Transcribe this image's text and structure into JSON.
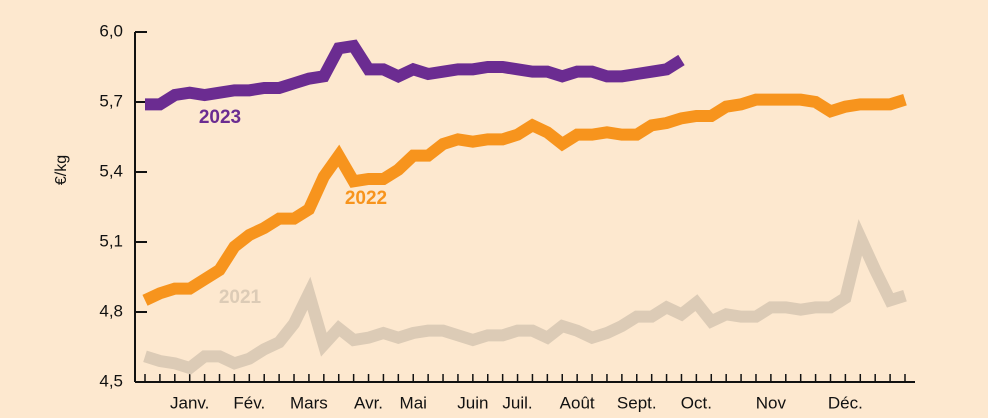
{
  "chart_data": {
    "type": "line",
    "y_label": "€/kg",
    "categories": [
      null,
      null,
      null,
      "Janv.",
      null,
      null,
      null,
      "Fév.",
      null,
      null,
      null,
      "Mars",
      null,
      null,
      null,
      "Avr.",
      null,
      null,
      "Mai",
      null,
      null,
      null,
      "Juin",
      null,
      null,
      "Juil.",
      null,
      null,
      null,
      "Août",
      null,
      null,
      null,
      "Sept.",
      null,
      null,
      null,
      "Oct.",
      null,
      null,
      null,
      null,
      "Nov",
      null,
      null,
      null,
      null,
      "Déc.",
      null,
      null,
      null,
      null
    ],
    "series": [
      {
        "name": "2023",
        "color": "#6b2c91",
        "values": [
          5.69,
          5.69,
          5.73,
          5.74,
          5.73,
          5.74,
          5.75,
          5.75,
          5.76,
          5.76,
          5.78,
          5.8,
          5.81,
          5.93,
          5.94,
          5.84,
          5.84,
          5.81,
          5.84,
          5.82,
          5.83,
          5.84,
          5.84,
          5.85,
          5.85,
          5.84,
          5.83,
          5.83,
          5.81,
          5.83,
          5.83,
          5.81,
          5.81,
          5.82,
          5.83,
          5.84,
          5.88,
          null,
          null,
          null,
          null,
          null,
          null,
          null,
          null,
          null,
          null,
          null,
          null,
          null,
          null,
          null
        ]
      },
      {
        "name": "2022",
        "color": "#f7941d",
        "values": [
          4.85,
          4.88,
          4.9,
          4.9,
          4.94,
          4.98,
          5.08,
          5.13,
          5.16,
          5.2,
          5.2,
          5.24,
          5.38,
          5.47,
          5.36,
          5.37,
          5.37,
          5.41,
          5.47,
          5.47,
          5.52,
          5.54,
          5.53,
          5.54,
          5.54,
          5.56,
          5.6,
          5.57,
          5.52,
          5.56,
          5.56,
          5.57,
          5.56,
          5.56,
          5.6,
          5.61,
          5.63,
          5.64,
          5.64,
          5.68,
          5.69,
          5.71,
          5.71,
          5.71,
          5.71,
          5.7,
          5.66,
          5.68,
          5.69,
          5.69,
          5.69,
          5.71
        ]
      },
      {
        "name": "2021",
        "color": "#dccbb6",
        "values": [
          4.61,
          4.59,
          4.58,
          4.56,
          4.61,
          4.61,
          4.58,
          4.6,
          4.64,
          4.67,
          4.75,
          4.88,
          4.66,
          4.73,
          4.68,
          4.69,
          4.71,
          4.69,
          4.71,
          4.72,
          4.72,
          4.7,
          4.68,
          4.7,
          4.7,
          4.72,
          4.72,
          4.69,
          4.74,
          4.72,
          4.69,
          4.71,
          4.74,
          4.78,
          4.78,
          4.82,
          4.79,
          4.84,
          4.76,
          4.79,
          4.78,
          4.78,
          4.82,
          4.82,
          4.81,
          4.82,
          4.82,
          4.86,
          5.12,
          4.98,
          4.85,
          4.87
        ]
      }
    ],
    "ylim": [
      4.5,
      6.0
    ],
    "yticks": [
      {
        "value": 4.5,
        "label": "4,5"
      },
      {
        "value": 4.8,
        "label": "4,8"
      },
      {
        "value": 5.1,
        "label": "5,1"
      },
      {
        "value": 5.4,
        "label": "5,4"
      },
      {
        "value": 5.7,
        "label": "5,7"
      },
      {
        "value": 6.0,
        "label": "6,0"
      }
    ]
  }
}
